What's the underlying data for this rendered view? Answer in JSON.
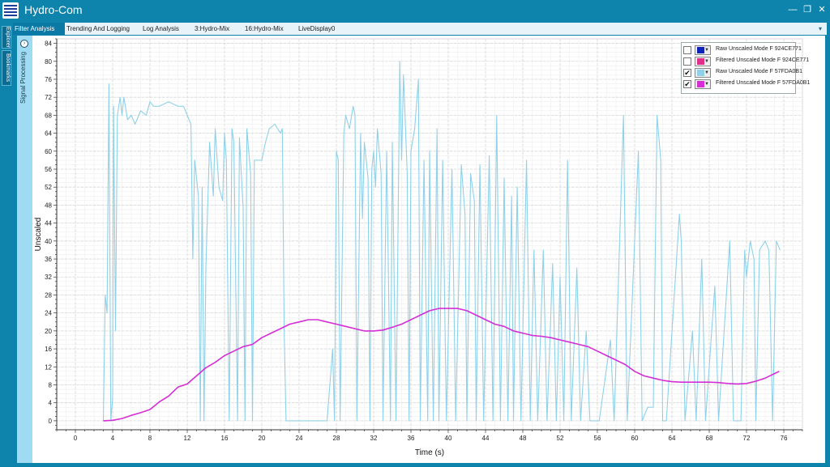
{
  "window": {
    "title": "Hydro-Com"
  },
  "tabs": [
    {
      "label": "Filter Analysis",
      "active": true
    },
    {
      "label": "Trending And Logging",
      "active": false
    },
    {
      "label": "Log Analysis",
      "active": false
    },
    {
      "label": "3:Hydro-Mix",
      "active": false
    },
    {
      "label": "16:Hydro-Mix",
      "active": false
    },
    {
      "label": "LiveDisplay0",
      "active": false
    }
  ],
  "side_tabs": {
    "explorer": "Explorer",
    "bookmarks": "Bookmarks"
  },
  "side_panel": {
    "label": "Signal Processing"
  },
  "legend": [
    {
      "label": "Raw Unscaled Mode F 924CE771",
      "checked": false,
      "color": "#1022b8"
    },
    {
      "label": "Filtered Unscaled Mode F 924CE771",
      "checked": false,
      "color": "#e0308a"
    },
    {
      "label": "Raw Unscaled Mode F 57FDA0B1",
      "checked": true,
      "color": "#8fd1e8"
    },
    {
      "label": "Filtered Unscaled Mode F 57FDA0B1",
      "checked": true,
      "color": "#d42ed4"
    }
  ],
  "chart_data": {
    "type": "line",
    "xlabel": "Time (s)",
    "ylabel": "Unscaled",
    "xlim": [
      -2,
      78
    ],
    "ylim": [
      -2,
      85
    ],
    "xticks": [
      0,
      4,
      8,
      12,
      16,
      20,
      24,
      28,
      32,
      36,
      40,
      44,
      48,
      52,
      56,
      60,
      64,
      68,
      72,
      76
    ],
    "yticks": [
      0,
      4,
      8,
      12,
      16,
      20,
      24,
      28,
      32,
      36,
      40,
      44,
      48,
      52,
      56,
      60,
      64,
      68,
      72,
      76,
      80,
      84
    ],
    "grid": true,
    "legend_position": "top-right",
    "series": [
      {
        "name": "Raw Unscaled Mode F 57FDA0B1",
        "color": "#8fd1e8",
        "points": [
          [
            3.0,
            0
          ],
          [
            3.2,
            28
          ],
          [
            3.4,
            24
          ],
          [
            3.6,
            75
          ],
          [
            3.8,
            0
          ],
          [
            4.0,
            5
          ],
          [
            4.1,
            70
          ],
          [
            4.3,
            20
          ],
          [
            4.5,
            68
          ],
          [
            4.8,
            72
          ],
          [
            5.0,
            68
          ],
          [
            5.2,
            72
          ],
          [
            5.6,
            67
          ],
          [
            6.0,
            68
          ],
          [
            6.4,
            66
          ],
          [
            7.0,
            69
          ],
          [
            7.6,
            68
          ],
          [
            8.0,
            71
          ],
          [
            8.4,
            70
          ],
          [
            9.0,
            70
          ],
          [
            10.0,
            71
          ],
          [
            11.0,
            70
          ],
          [
            11.6,
            70
          ],
          [
            12.4,
            66
          ],
          [
            12.6,
            36
          ],
          [
            12.8,
            58
          ],
          [
            13.2,
            50
          ],
          [
            13.4,
            0
          ],
          [
            13.6,
            52
          ],
          [
            13.8,
            0
          ],
          [
            14.0,
            34
          ],
          [
            14.4,
            62
          ],
          [
            14.8,
            50
          ],
          [
            15.0,
            65
          ],
          [
            15.4,
            52
          ],
          [
            15.8,
            49
          ],
          [
            16.0,
            64
          ],
          [
            16.2,
            58
          ],
          [
            16.5,
            0
          ],
          [
            16.8,
            65
          ],
          [
            17.0,
            62
          ],
          [
            17.4,
            0
          ],
          [
            17.6,
            63
          ],
          [
            18.0,
            47
          ],
          [
            18.2,
            0
          ],
          [
            18.4,
            65
          ],
          [
            18.8,
            55
          ],
          [
            19.0,
            0
          ],
          [
            19.2,
            58
          ],
          [
            20.0,
            58
          ],
          [
            20.4,
            62
          ],
          [
            20.8,
            65
          ],
          [
            21.4,
            66
          ],
          [
            22.0,
            64
          ],
          [
            22.2,
            65
          ],
          [
            22.4,
            20
          ],
          [
            22.6,
            0
          ],
          [
            23.0,
            0
          ],
          [
            27.0,
            0
          ],
          [
            27.6,
            16
          ],
          [
            27.8,
            0
          ],
          [
            28.0,
            60
          ],
          [
            28.2,
            58
          ],
          [
            28.4,
            0
          ],
          [
            28.8,
            64
          ],
          [
            29.0,
            68
          ],
          [
            29.4,
            65
          ],
          [
            29.8,
            70
          ],
          [
            30.0,
            68
          ],
          [
            30.2,
            0
          ],
          [
            30.6,
            64
          ],
          [
            30.8,
            45
          ],
          [
            31.0,
            62
          ],
          [
            31.4,
            54
          ],
          [
            31.6,
            0
          ],
          [
            31.8,
            56
          ],
          [
            32.0,
            60
          ],
          [
            32.2,
            52
          ],
          [
            32.4,
            65
          ],
          [
            32.8,
            55
          ],
          [
            33.0,
            0
          ],
          [
            33.4,
            60
          ],
          [
            33.8,
            0
          ],
          [
            34.0,
            62
          ],
          [
            34.4,
            0
          ],
          [
            34.8,
            80
          ],
          [
            35.0,
            58
          ],
          [
            35.2,
            77
          ],
          [
            35.6,
            55
          ],
          [
            35.8,
            0
          ],
          [
            36.0,
            60
          ],
          [
            36.4,
            65
          ],
          [
            36.8,
            76
          ],
          [
            37.0,
            0
          ],
          [
            37.4,
            58
          ],
          [
            37.8,
            0
          ],
          [
            38.0,
            60
          ],
          [
            38.4,
            0
          ],
          [
            38.8,
            65
          ],
          [
            39.0,
            0
          ],
          [
            39.4,
            58
          ],
          [
            39.8,
            0
          ],
          [
            40.4,
            56
          ],
          [
            40.8,
            0
          ],
          [
            41.4,
            57
          ],
          [
            41.8,
            46
          ],
          [
            42.0,
            0
          ],
          [
            42.4,
            55
          ],
          [
            42.8,
            49
          ],
          [
            43.0,
            0
          ],
          [
            43.4,
            57
          ],
          [
            43.8,
            0
          ],
          [
            44.4,
            59
          ],
          [
            44.8,
            0
          ],
          [
            45.2,
            68
          ],
          [
            45.6,
            0
          ],
          [
            46.0,
            54
          ],
          [
            46.4,
            0
          ],
          [
            46.8,
            50
          ],
          [
            47.0,
            0
          ],
          [
            47.4,
            52
          ],
          [
            47.8,
            0
          ],
          [
            48.4,
            58
          ],
          [
            48.8,
            0
          ],
          [
            49.2,
            38
          ],
          [
            49.6,
            0
          ],
          [
            50.2,
            38
          ],
          [
            50.6,
            0
          ],
          [
            51.2,
            35
          ],
          [
            51.6,
            0
          ],
          [
            52.0,
            32
          ],
          [
            52.4,
            0
          ],
          [
            52.8,
            58
          ],
          [
            53.2,
            0
          ],
          [
            53.8,
            34
          ],
          [
            54.2,
            0
          ],
          [
            54.8,
            20
          ],
          [
            55.2,
            0
          ],
          [
            56.2,
            0
          ],
          [
            57.4,
            18
          ],
          [
            57.8,
            0
          ],
          [
            58.8,
            68
          ],
          [
            59.2,
            0
          ],
          [
            60.4,
            60
          ],
          [
            60.8,
            0
          ],
          [
            61.4,
            3
          ],
          [
            62.0,
            3
          ],
          [
            62.4,
            68
          ],
          [
            62.8,
            58
          ],
          [
            63.0,
            0
          ],
          [
            63.4,
            0
          ],
          [
            64.8,
            46
          ],
          [
            65.0,
            40
          ],
          [
            65.4,
            0
          ],
          [
            66.2,
            20
          ],
          [
            66.6,
            0
          ],
          [
            67.2,
            36
          ],
          [
            67.6,
            0
          ],
          [
            68.6,
            30
          ],
          [
            69.0,
            0
          ],
          [
            70.2,
            40
          ],
          [
            70.6,
            0
          ],
          [
            71.4,
            0
          ],
          [
            71.8,
            38
          ],
          [
            72.0,
            32
          ],
          [
            72.4,
            40
          ],
          [
            72.8,
            36
          ],
          [
            73.0,
            0
          ],
          [
            73.4,
            38
          ],
          [
            74.0,
            40
          ],
          [
            74.4,
            38
          ],
          [
            74.8,
            0
          ],
          [
            75.2,
            40
          ],
          [
            75.6,
            38
          ]
        ]
      },
      {
        "name": "Filtered Unscaled Mode F 57FDA0B1",
        "color": "#d42ed4",
        "points": [
          [
            3,
            0
          ],
          [
            4,
            0.1
          ],
          [
            5,
            0.5
          ],
          [
            6,
            1.2
          ],
          [
            7,
            1.8
          ],
          [
            8,
            2.5
          ],
          [
            9,
            4.2
          ],
          [
            10,
            5.5
          ],
          [
            11,
            7.5
          ],
          [
            12,
            8.2
          ],
          [
            13,
            10
          ],
          [
            14,
            11.8
          ],
          [
            15,
            13
          ],
          [
            16,
            14.5
          ],
          [
            17,
            15.5
          ],
          [
            18,
            16.5
          ],
          [
            19,
            17
          ],
          [
            20,
            18.5
          ],
          [
            21,
            19.5
          ],
          [
            22,
            20.5
          ],
          [
            23,
            21.5
          ],
          [
            24,
            22
          ],
          [
            25,
            22.5
          ],
          [
            26,
            22.5
          ],
          [
            27,
            22
          ],
          [
            28,
            21.5
          ],
          [
            29,
            21
          ],
          [
            30,
            20.5
          ],
          [
            31,
            20
          ],
          [
            32,
            20
          ],
          [
            33,
            20.2
          ],
          [
            34,
            20.8
          ],
          [
            35,
            21.5
          ],
          [
            36,
            22.5
          ],
          [
            37,
            23.5
          ],
          [
            38,
            24.5
          ],
          [
            39,
            25
          ],
          [
            40,
            25
          ],
          [
            41,
            25
          ],
          [
            42,
            24.5
          ],
          [
            43,
            23.5
          ],
          [
            44,
            22.5
          ],
          [
            45,
            21.5
          ],
          [
            46,
            21
          ],
          [
            47,
            20
          ],
          [
            48,
            19.5
          ],
          [
            49,
            19
          ],
          [
            50,
            18.8
          ],
          [
            51,
            18.5
          ],
          [
            52,
            18
          ],
          [
            53,
            17.5
          ],
          [
            54,
            17
          ],
          [
            55,
            16.5
          ],
          [
            56,
            15.5
          ],
          [
            57,
            14.5
          ],
          [
            58,
            13.5
          ],
          [
            59,
            12.5
          ],
          [
            60,
            11
          ],
          [
            61,
            10
          ],
          [
            62,
            9.5
          ],
          [
            63,
            9
          ],
          [
            64,
            8.7
          ],
          [
            65,
            8.6
          ],
          [
            66,
            8.6
          ],
          [
            67,
            8.6
          ],
          [
            68,
            8.6
          ],
          [
            69,
            8.5
          ],
          [
            70,
            8.3
          ],
          [
            71,
            8.2
          ],
          [
            72,
            8.3
          ],
          [
            73,
            8.8
          ],
          [
            74,
            9.5
          ],
          [
            75,
            10.5
          ],
          [
            75.5,
            11
          ]
        ]
      }
    ]
  }
}
